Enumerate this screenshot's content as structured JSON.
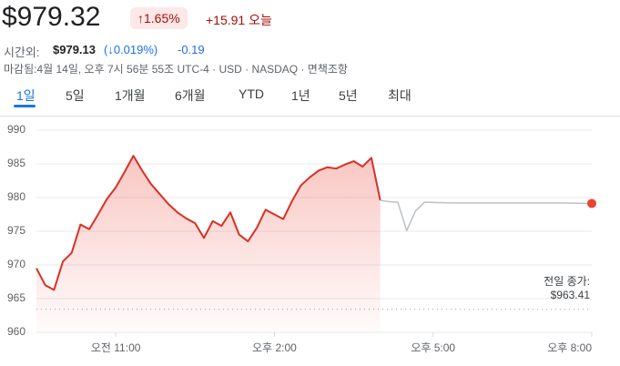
{
  "quote": {
    "price": "$979.32",
    "change_pct": "↑1.65%",
    "change": "+15.91 오늘",
    "after_hours_label": "시간외:",
    "after_hours_price": "$979.13",
    "after_hours_pct": "(↓0.019%)",
    "after_hours_change": "-0.19",
    "meta": "마감됨:4월 14일, 오후 7시 56분 55조 UTC-4 · USD · NASDAQ · 면책조항"
  },
  "tabs": [
    "1일",
    "5일",
    "1개월",
    "6개월",
    "YTD",
    "1년",
    "5년",
    "최대"
  ],
  "chart_data": {
    "type": "line",
    "series": [
      {
        "color": "#d93025",
        "x": [
          570,
          580,
          590,
          600,
          610,
          620,
          630,
          640,
          650,
          660,
          670,
          680,
          690,
          700,
          710,
          720,
          730,
          740,
          750,
          760,
          770,
          780,
          790,
          800,
          810,
          820,
          830,
          840,
          850,
          860,
          870,
          880,
          890,
          900,
          910,
          920,
          930,
          940,
          950,
          960
        ],
        "values": [
          969.5,
          967.0,
          966.3,
          970.5,
          971.8,
          976.0,
          975.3,
          977.5,
          979.8,
          981.5,
          983.8,
          986.2,
          984.0,
          982.0,
          980.5,
          979.0,
          977.8,
          976.9,
          976.2,
          974.0,
          976.5,
          975.8,
          977.8,
          974.5,
          973.5,
          975.5,
          978.2,
          977.5,
          976.8,
          979.5,
          981.8,
          983.0,
          984.0,
          984.5,
          984.3,
          984.9,
          985.4,
          984.6,
          985.9,
          979.6
        ]
      },
      {
        "color": "#bdc1c6",
        "x": [
          960,
          970,
          980,
          990,
          1000,
          1010,
          1040,
          1080,
          1120,
          1160,
          1200
        ],
        "values": [
          979.6,
          979.4,
          979.3,
          975.1,
          978.0,
          979.3,
          979.2,
          979.2,
          979.2,
          979.2,
          979.13
        ]
      }
    ],
    "xlim": [
      570,
      1200
    ],
    "xticks": [
      {
        "value": 660,
        "label": "오전 11:00"
      },
      {
        "value": 840,
        "label": "오후 2:00"
      },
      {
        "value": 1020,
        "label": "오후 5:00"
      },
      {
        "value": 1200,
        "label": "오후 8:00"
      }
    ],
    "ylim": [
      960,
      990
    ],
    "yticks": [
      960,
      965,
      970,
      975,
      980,
      985,
      990
    ],
    "grid": true,
    "reference": {
      "label": "전일 종가:",
      "value": 963.41,
      "value_label": "$963.41"
    }
  }
}
